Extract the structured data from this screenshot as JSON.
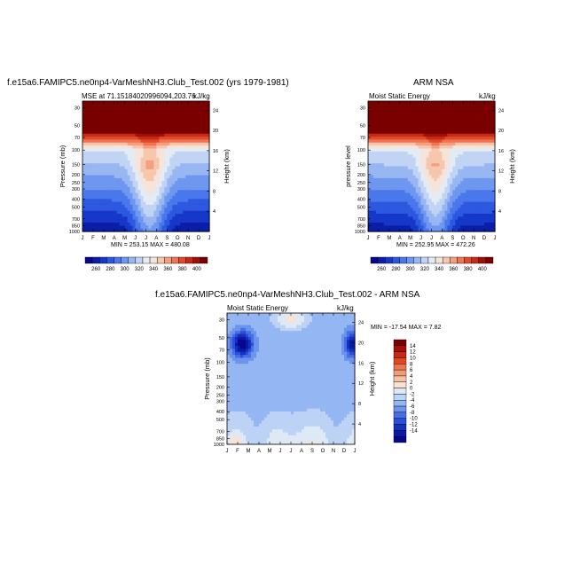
{
  "chart_data": [
    {
      "type": "heatmap",
      "title": "f.e15a6.FAMIPC5.ne0np4-VarMeshNH3.Club_Test.002 (yrs 1979-1981)",
      "subtitle_left": "MSE at 71.15184020996094,203.76",
      "subtitle_right": "kJ/kg",
      "xlabel": "",
      "ylabel_left": "Pressure (mb)",
      "ylabel_right": "Height (km)",
      "x_ticks": [
        "J",
        "F",
        "M",
        "A",
        "M",
        "J",
        "J",
        "A",
        "S",
        "O",
        "N",
        "D",
        "J"
      ],
      "pressure_ticks": [
        "30",
        "50",
        "70",
        "100",
        "150",
        "200",
        "250",
        "300",
        "400",
        "500",
        "700",
        "850",
        "1000"
      ],
      "height_ticks": [
        "24",
        "20",
        "16",
        "12",
        "8",
        "4"
      ],
      "stats": "MIN = 253.15  MAX = 480.08",
      "min": 253.15,
      "max": 480.08,
      "colorbar_labels": [
        "260",
        "280",
        "300",
        "320",
        "340",
        "360",
        "380",
        "400"
      ],
      "colorbar_orientation": "horizontal"
    },
    {
      "type": "heatmap",
      "title": "ARM NSA",
      "subtitle_left": "Moist Static Energy",
      "subtitle_right": "kJ/kg",
      "ylabel_left": "pressure level",
      "ylabel_right": "Height (km)",
      "x_ticks": [
        "J",
        "F",
        "M",
        "A",
        "M",
        "J",
        "J",
        "A",
        "S",
        "O",
        "N",
        "D",
        "J"
      ],
      "pressure_ticks": [
        "30",
        "50",
        "70",
        "100",
        "150",
        "200",
        "250",
        "300",
        "400",
        "500",
        "700",
        "850",
        "1000"
      ],
      "height_ticks": [
        "24",
        "20",
        "16",
        "12",
        "8",
        "4"
      ],
      "stats": "MIN = 252.95  MAX = 472.26",
      "min": 252.95,
      "max": 472.26,
      "colorbar_labels": [
        "260",
        "280",
        "300",
        "320",
        "340",
        "360",
        "380",
        "400"
      ],
      "colorbar_orientation": "horizontal"
    },
    {
      "type": "heatmap",
      "title": "f.e15a6.FAMIPC5.ne0np4-VarMeshNH3.Club_Test.002 - ARM NSA",
      "subtitle_left": "Moist Static Energy",
      "subtitle_right": "kJ/kg",
      "ylabel_left": "Pressure (mb)",
      "ylabel_right": "Height (km)",
      "x_ticks": [
        "J",
        "F",
        "M",
        "A",
        "M",
        "J",
        "J",
        "A",
        "S",
        "O",
        "N",
        "D",
        "J"
      ],
      "pressure_ticks": [
        "30",
        "50",
        "70",
        "100",
        "150",
        "200",
        "250",
        "300",
        "400",
        "500",
        "700",
        "850",
        "1000"
      ],
      "height_ticks": [
        "24",
        "20",
        "16",
        "12",
        "8",
        "4"
      ],
      "stats": "MIN = -17.54  MAX =   7.82",
      "min": -17.54,
      "max": 7.82,
      "colorbar_labels": [
        "14",
        "12",
        "10",
        "8",
        "6",
        "4",
        "2",
        "0",
        "-2",
        "-4",
        "-6",
        "-8",
        "-10",
        "-12",
        "-14"
      ],
      "colorbar_orientation": "vertical"
    }
  ],
  "colors": {
    "mse_scale": [
      "#08068a",
      "#0b1ea8",
      "#1638c8",
      "#2d58e0",
      "#4a78ec",
      "#6e97f0",
      "#98b6f2",
      "#c2d4f4",
      "#e3ebf5",
      "#f6e4da",
      "#f6c6ad",
      "#f4a07e",
      "#ef7552",
      "#e24a2d",
      "#c82a14",
      "#9c1206",
      "#7a0000"
    ],
    "diff_scale": [
      "#7a0000",
      "#a50f05",
      "#c82712",
      "#e04a22",
      "#ef7450",
      "#f59a78",
      "#f8c0a4",
      "#f6e3d6",
      "#dfe9f6",
      "#bcd3f6",
      "#94b6f2",
      "#6d94ec",
      "#4670e4",
      "#2a4ed8",
      "#1530c0",
      "#0b1aa4",
      "#08068a"
    ]
  }
}
